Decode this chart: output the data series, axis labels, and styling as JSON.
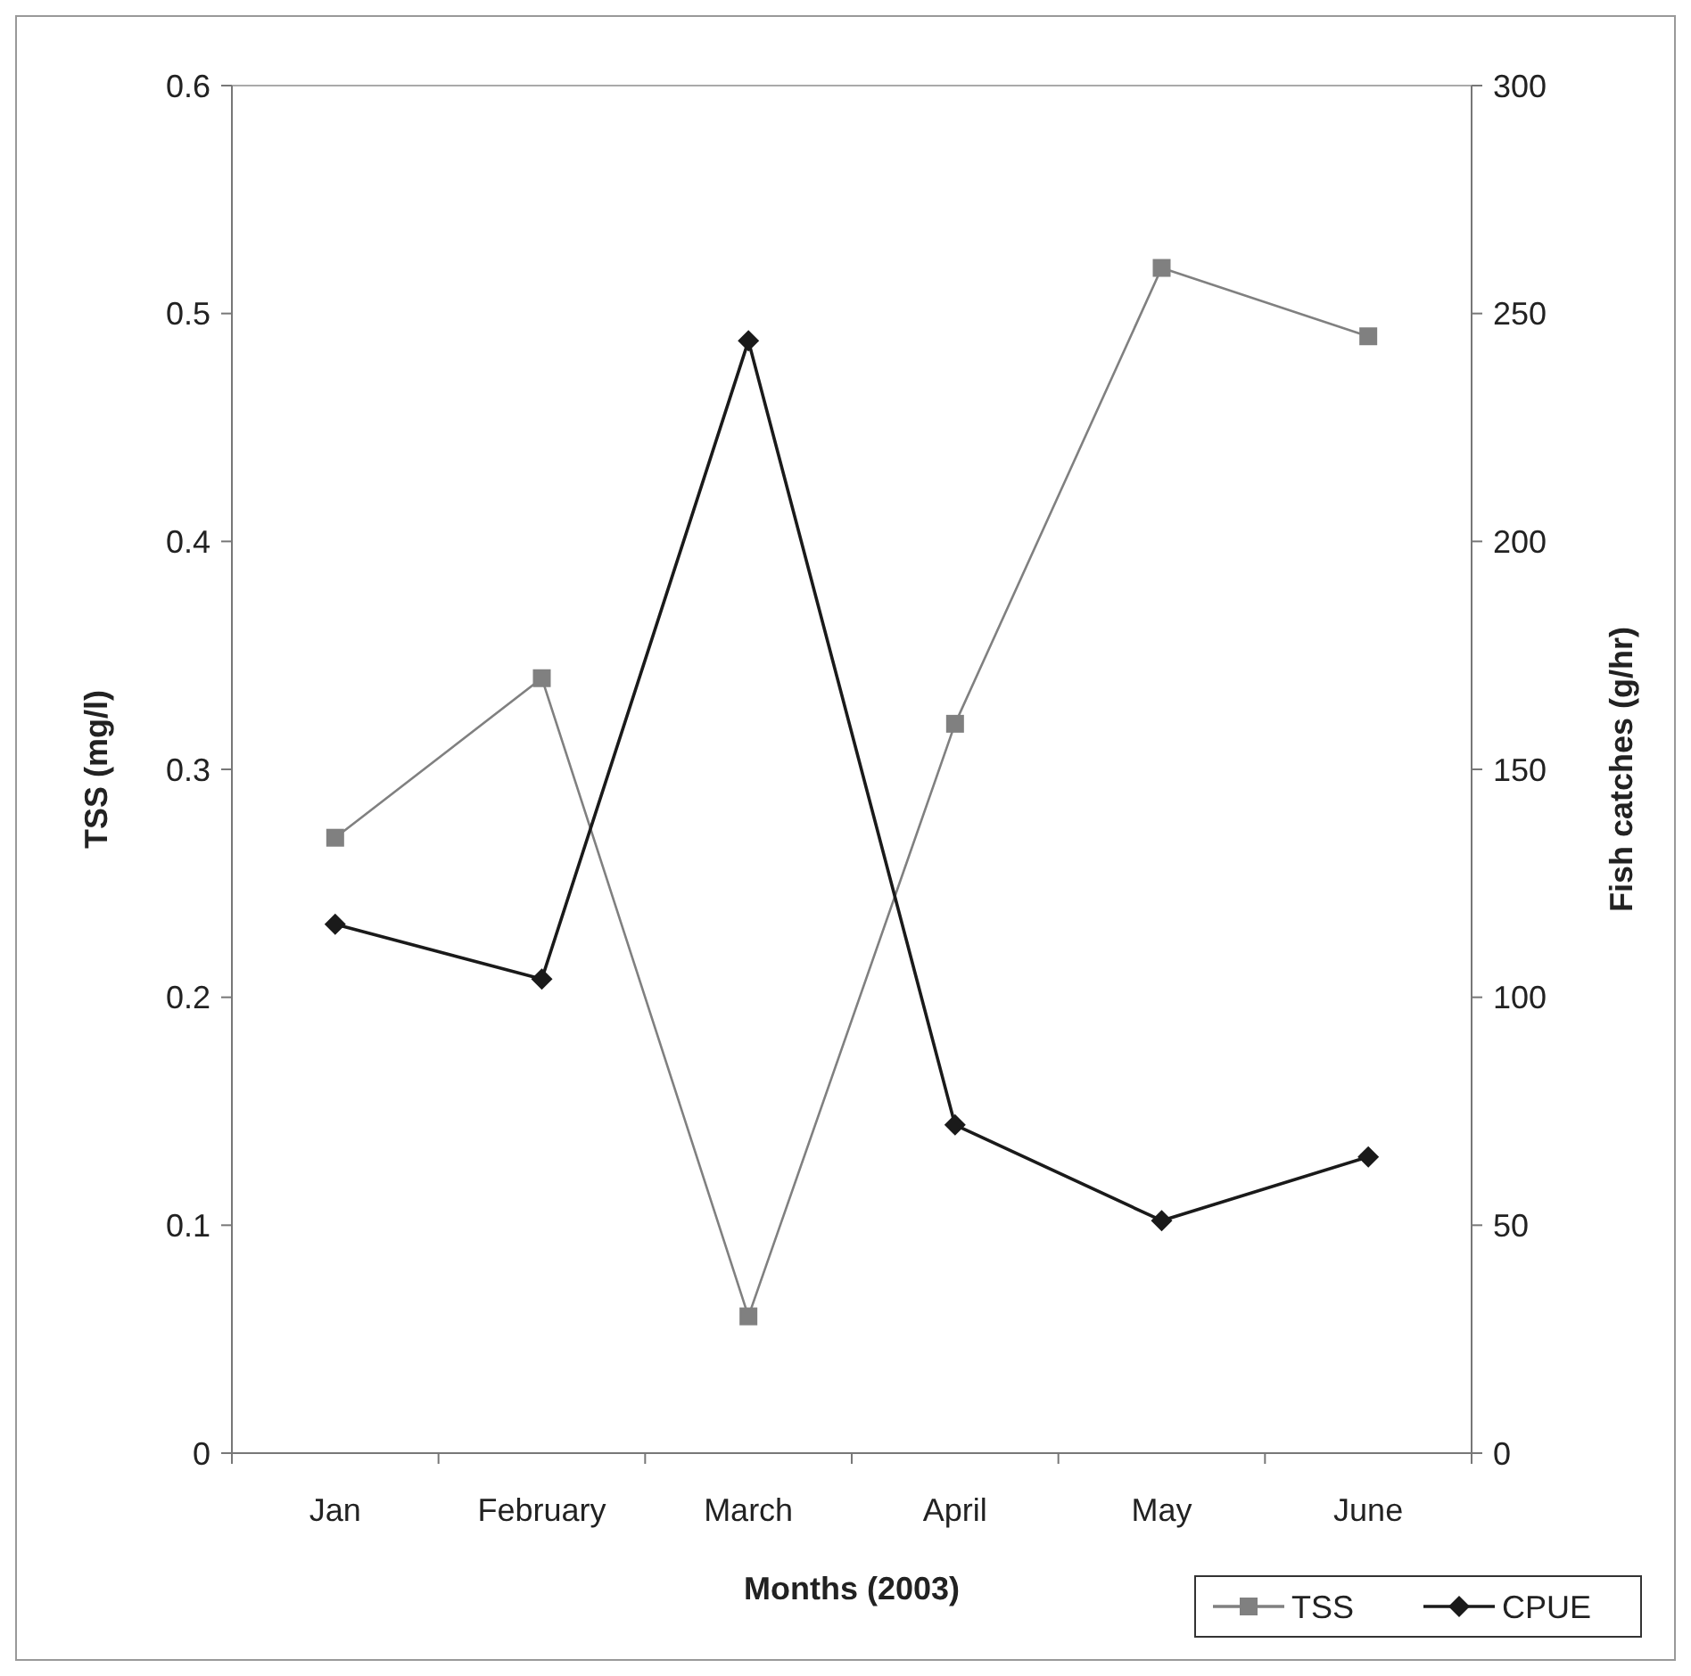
{
  "chart_data": {
    "type": "line",
    "xlabel": "Months (2003)",
    "ylabel": "TSS (mg/l)",
    "y2label": "Fish catches (g/hr)",
    "categories": [
      "Jan",
      "February",
      "March",
      "April",
      "May",
      "June"
    ],
    "series": [
      {
        "name": "TSS",
        "color": "#808080",
        "marker": "square",
        "values": [
          0.27,
          0.34,
          0.06,
          0.32,
          0.52,
          0.49
        ]
      },
      {
        "name": "CPUE",
        "color": "#1a1a1a",
        "marker": "diamond",
        "axis": "y2",
        "values": [
          116,
          104,
          244,
          72,
          51,
          65
        ]
      }
    ],
    "ylim": [
      0,
      0.6
    ],
    "yticks": [
      0,
      0.1,
      0.2,
      0.3,
      0.4,
      0.5,
      0.6
    ],
    "y2lim": [
      0,
      300
    ],
    "y2ticks": [
      0,
      50,
      100,
      150,
      200,
      250,
      300
    ],
    "grid": false,
    "legend": "bottom right"
  }
}
